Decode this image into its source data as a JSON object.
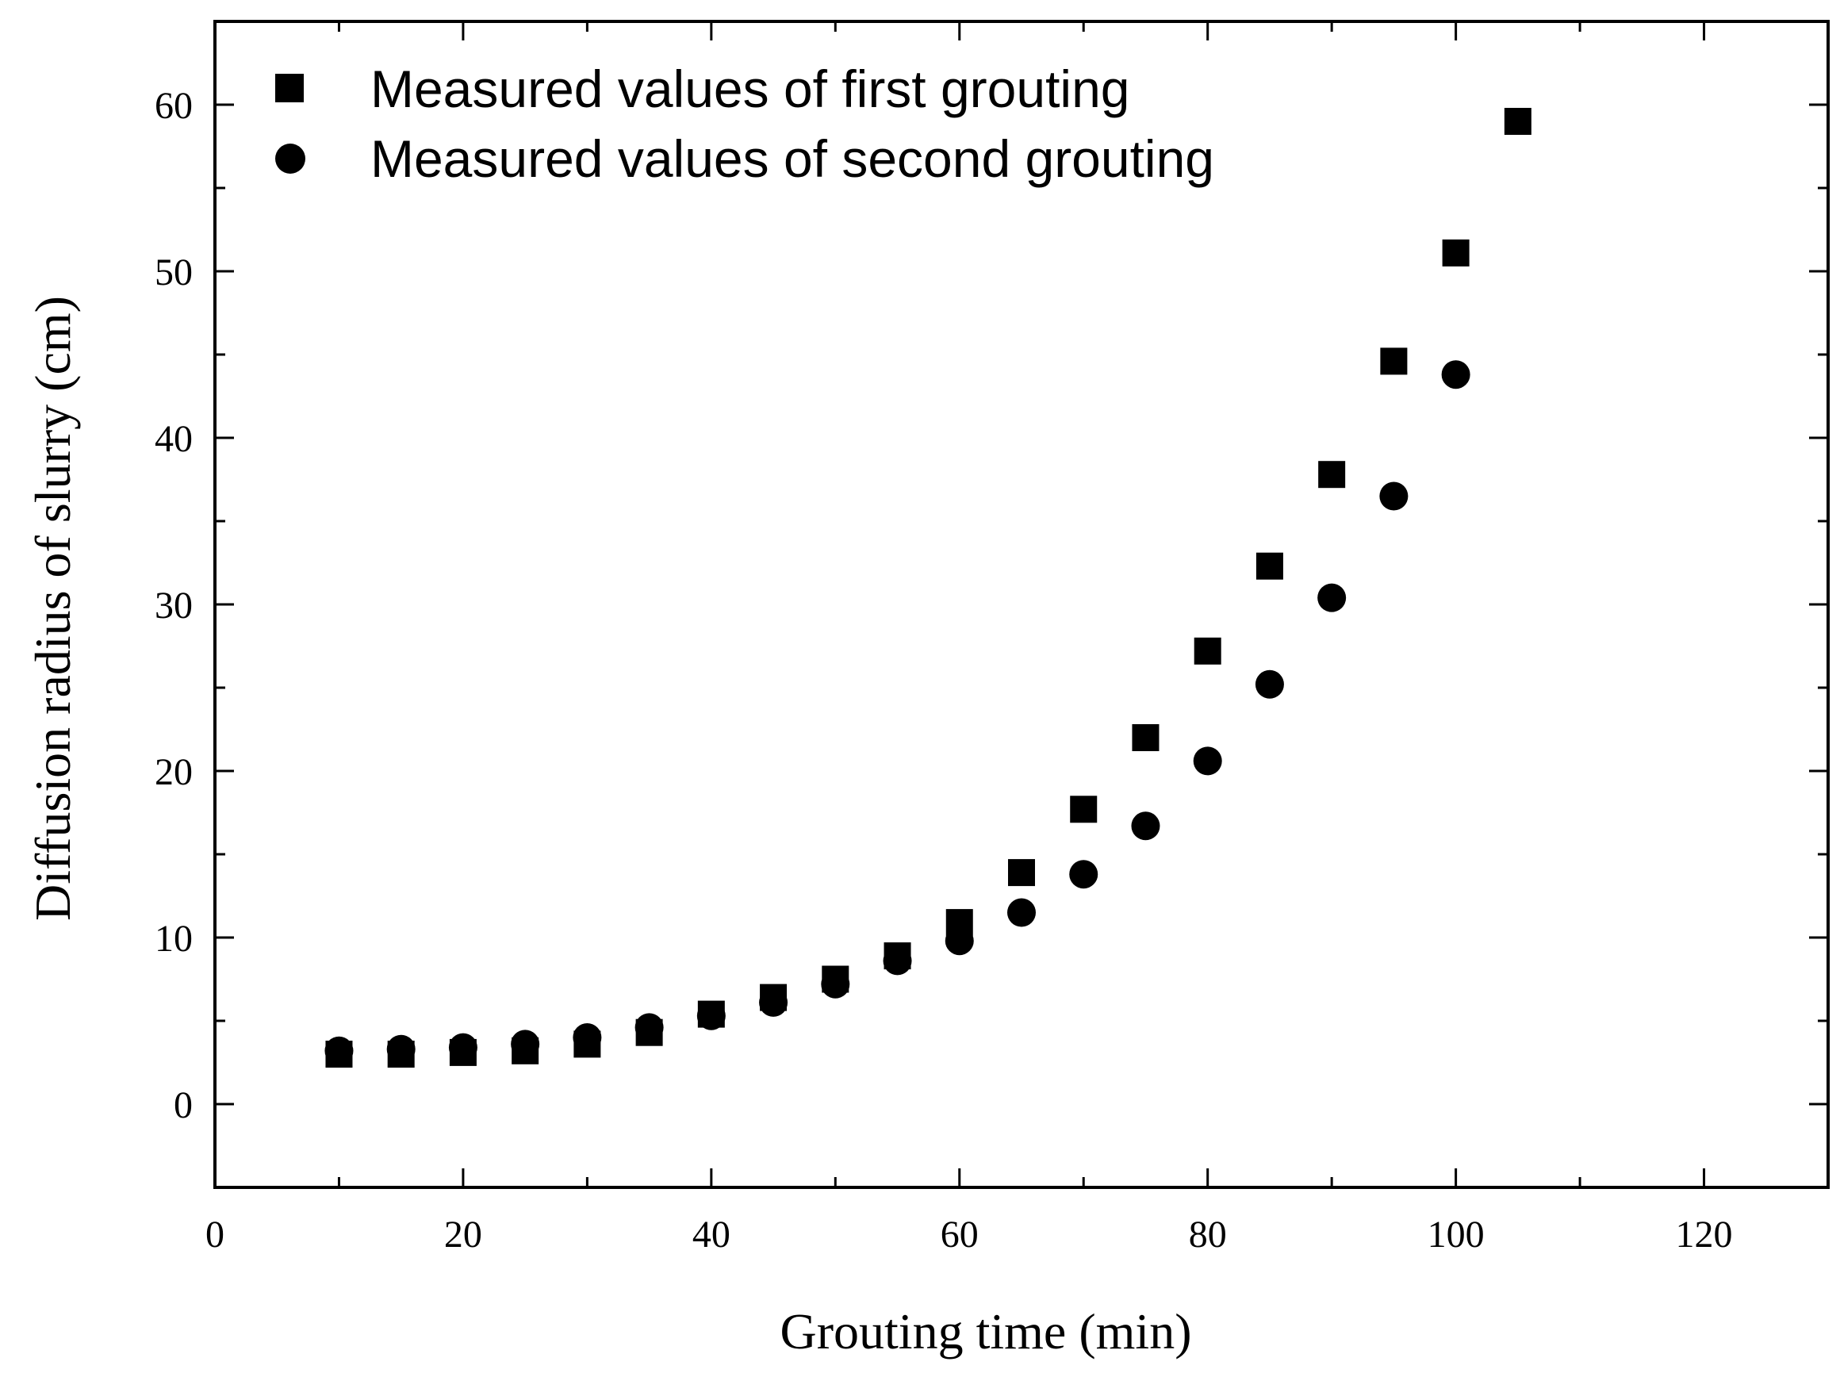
{
  "chart_data": {
    "type": "scatter",
    "title": "",
    "xlabel": "Grouting time (min)",
    "ylabel": "Diffusion radius of slurry (cm)",
    "xlim": [
      0,
      130
    ],
    "ylim": [
      -5,
      65
    ],
    "x_ticks": [
      0,
      20,
      40,
      60,
      80,
      100,
      120
    ],
    "y_ticks": [
      0,
      10,
      20,
      30,
      40,
      50,
      60
    ],
    "grid": false,
    "legend_position": "top-left",
    "series": [
      {
        "name": "Measured values of first grouting",
        "marker": "square",
        "color": "#000000",
        "x": [
          10,
          15,
          20,
          25,
          30,
          35,
          40,
          45,
          50,
          55,
          60,
          65,
          70,
          75,
          80,
          85,
          90,
          95,
          100,
          105
        ],
        "y": [
          3.0,
          3.0,
          3.1,
          3.2,
          3.6,
          4.3,
          5.4,
          6.4,
          7.5,
          8.9,
          10.9,
          13.9,
          17.7,
          22.0,
          27.2,
          32.3,
          37.8,
          44.6,
          51.1,
          59.0
        ]
      },
      {
        "name": "Measured values of second grouting",
        "marker": "circle",
        "color": "#000000",
        "x": [
          10,
          15,
          20,
          25,
          30,
          35,
          40,
          45,
          50,
          55,
          60,
          65,
          70,
          75,
          80,
          85,
          90,
          95,
          100
        ],
        "y": [
          3.2,
          3.3,
          3.4,
          3.6,
          4.0,
          4.6,
          5.3,
          6.1,
          7.2,
          8.6,
          9.8,
          11.5,
          13.8,
          16.7,
          20.6,
          25.2,
          30.4,
          36.5,
          43.8
        ]
      }
    ]
  }
}
